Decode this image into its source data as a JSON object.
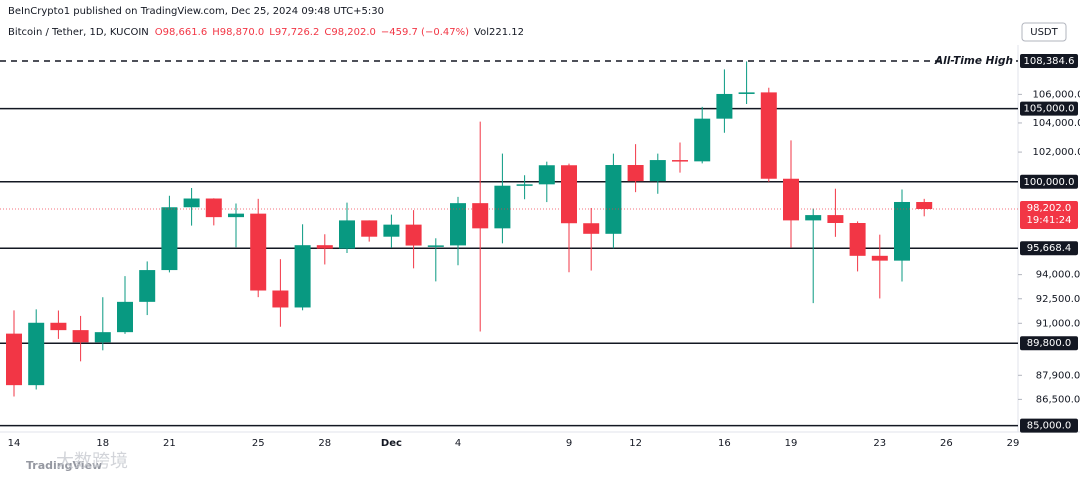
{
  "header": {
    "published": "BeInCrypto1 published on TradingView.com, Dec 25, 2024 09:48 UTC+5:30",
    "symbol": "Bitcoin / Tether, 1D, KUCOIN",
    "ohlc": [
      "O98,661.6",
      "H98,870.0",
      "L97,726.2",
      "C98,202.0"
    ],
    "change": "−459.7 (−0.47%)",
    "volume": "Vol221.12",
    "currency": "USDT"
  },
  "watermark": "TradingView",
  "overlay_watermark": "大数跨境",
  "chart_data": {
    "type": "candlestick",
    "log_scale": true,
    "grid": false,
    "up_color": "#089981",
    "down_color": "#f23645",
    "categories": [
      "14",
      null,
      null,
      null,
      "18",
      null,
      null,
      "21",
      null,
      null,
      null,
      "25",
      null,
      null,
      "28",
      null,
      null,
      "Dec",
      null,
      null,
      "4",
      null,
      null,
      null,
      null,
      "9",
      null,
      null,
      "12",
      null,
      null,
      null,
      "16",
      null,
      null,
      "19",
      null,
      null,
      null,
      "23",
      null,
      null,
      "26",
      null,
      null,
      "29"
    ],
    "open": [
      90375,
      87325,
      91032,
      90587,
      89855,
      90464,
      92310,
      94286,
      98317,
      98892,
      97672,
      97900,
      93010,
      91965,
      95863,
      95643,
      97460,
      96407,
      97185,
      95840,
      95849,
      98587,
      96945,
      99740,
      99831,
      101109,
      97276,
      96593,
      101125,
      100043,
      101459,
      101372,
      104298,
      106029,
      106140,
      100204,
      97461,
      97805,
      97291,
      95186,
      94881,
      98661.6,
      null,
      null,
      null,
      null
    ],
    "high": [
      91790,
      91850,
      91779,
      91449,
      92595,
      93905,
      94831,
      99073,
      99588,
      98908,
      98564,
      98871,
      94973,
      97208,
      96564,
      98619,
      97463,
      97836,
      98130,
      96305,
      99000,
      104088,
      101898,
      100439,
      101351,
      101215,
      98270,
      101895,
      102540,
      101895,
      102650,
      105120,
      107780,
      108353,
      106470,
      102800,
      98233,
      99540,
      97395,
      96538,
      99487,
      98870,
      null,
      null,
      null,
      null
    ],
    "low": [
      86668,
      87073,
      90057,
      88722,
      89376,
      90357,
      91500,
      94140,
      97122,
      97136,
      95734,
      92600,
      90791,
      91792,
      94640,
      95364,
      96092,
      95693,
      94395,
      93578,
      94587,
      90500,
      95981,
      98844,
      98657,
      94150,
      94256,
      95658,
      99311,
      99205,
      100609,
      101234,
      103322,
      105321,
      100000,
      95700,
      92232,
      96398,
      94202,
      92520,
      93569,
      97726.2,
      null,
      null,
      null,
      null
    ],
    "close": [
      87325,
      91032,
      90586,
      89855,
      90464,
      92310,
      94286,
      98317,
      98892,
      97672,
      97900,
      93010,
      91965,
      95863,
      95643,
      97460,
      96407,
      97185,
      95840,
      95849,
      98587,
      96945,
      99740,
      99831,
      101109,
      97276,
      96593,
      101125,
      100043,
      101459,
      101420,
      104298,
      106029,
      106140,
      100204,
      97461,
      97805,
      97291,
      95186,
      94881,
      98663,
      98202,
      null,
      null,
      null,
      null
    ],
    "ylim": [
      84640,
      109546
    ],
    "yticks": [
      {
        "value": 106000,
        "label": "106,000.0"
      },
      {
        "value": 104000,
        "label": "104,000.0"
      },
      {
        "value": 102000,
        "label": "102,000.0"
      },
      {
        "value": 94000,
        "label": "94,000.0"
      },
      {
        "value": 92500,
        "label": "92,500.0"
      },
      {
        "value": 91000,
        "label": "91,000.0"
      },
      {
        "value": 87900,
        "label": "87,900.0"
      },
      {
        "value": 86500,
        "label": "86,500.0"
      }
    ],
    "levels": [
      {
        "value": 108384.6,
        "label": "108,384.6",
        "style": "dashed",
        "text": "All-Time High"
      },
      {
        "value": 105000,
        "label": "105,000.0",
        "style": "solid"
      },
      {
        "value": 100000,
        "label": "100,000.0",
        "style": "solid"
      },
      {
        "value": 95668.4,
        "label": "95,668.4",
        "style": "solid"
      },
      {
        "value": 89800,
        "label": "89,800.0",
        "style": "solid"
      },
      {
        "value": 85000,
        "label": "85,000.0",
        "style": "solid"
      }
    ],
    "last_price": {
      "value": 98202,
      "label": "98,202.0",
      "countdown": "19:41:24",
      "color": "#f23645"
    }
  }
}
